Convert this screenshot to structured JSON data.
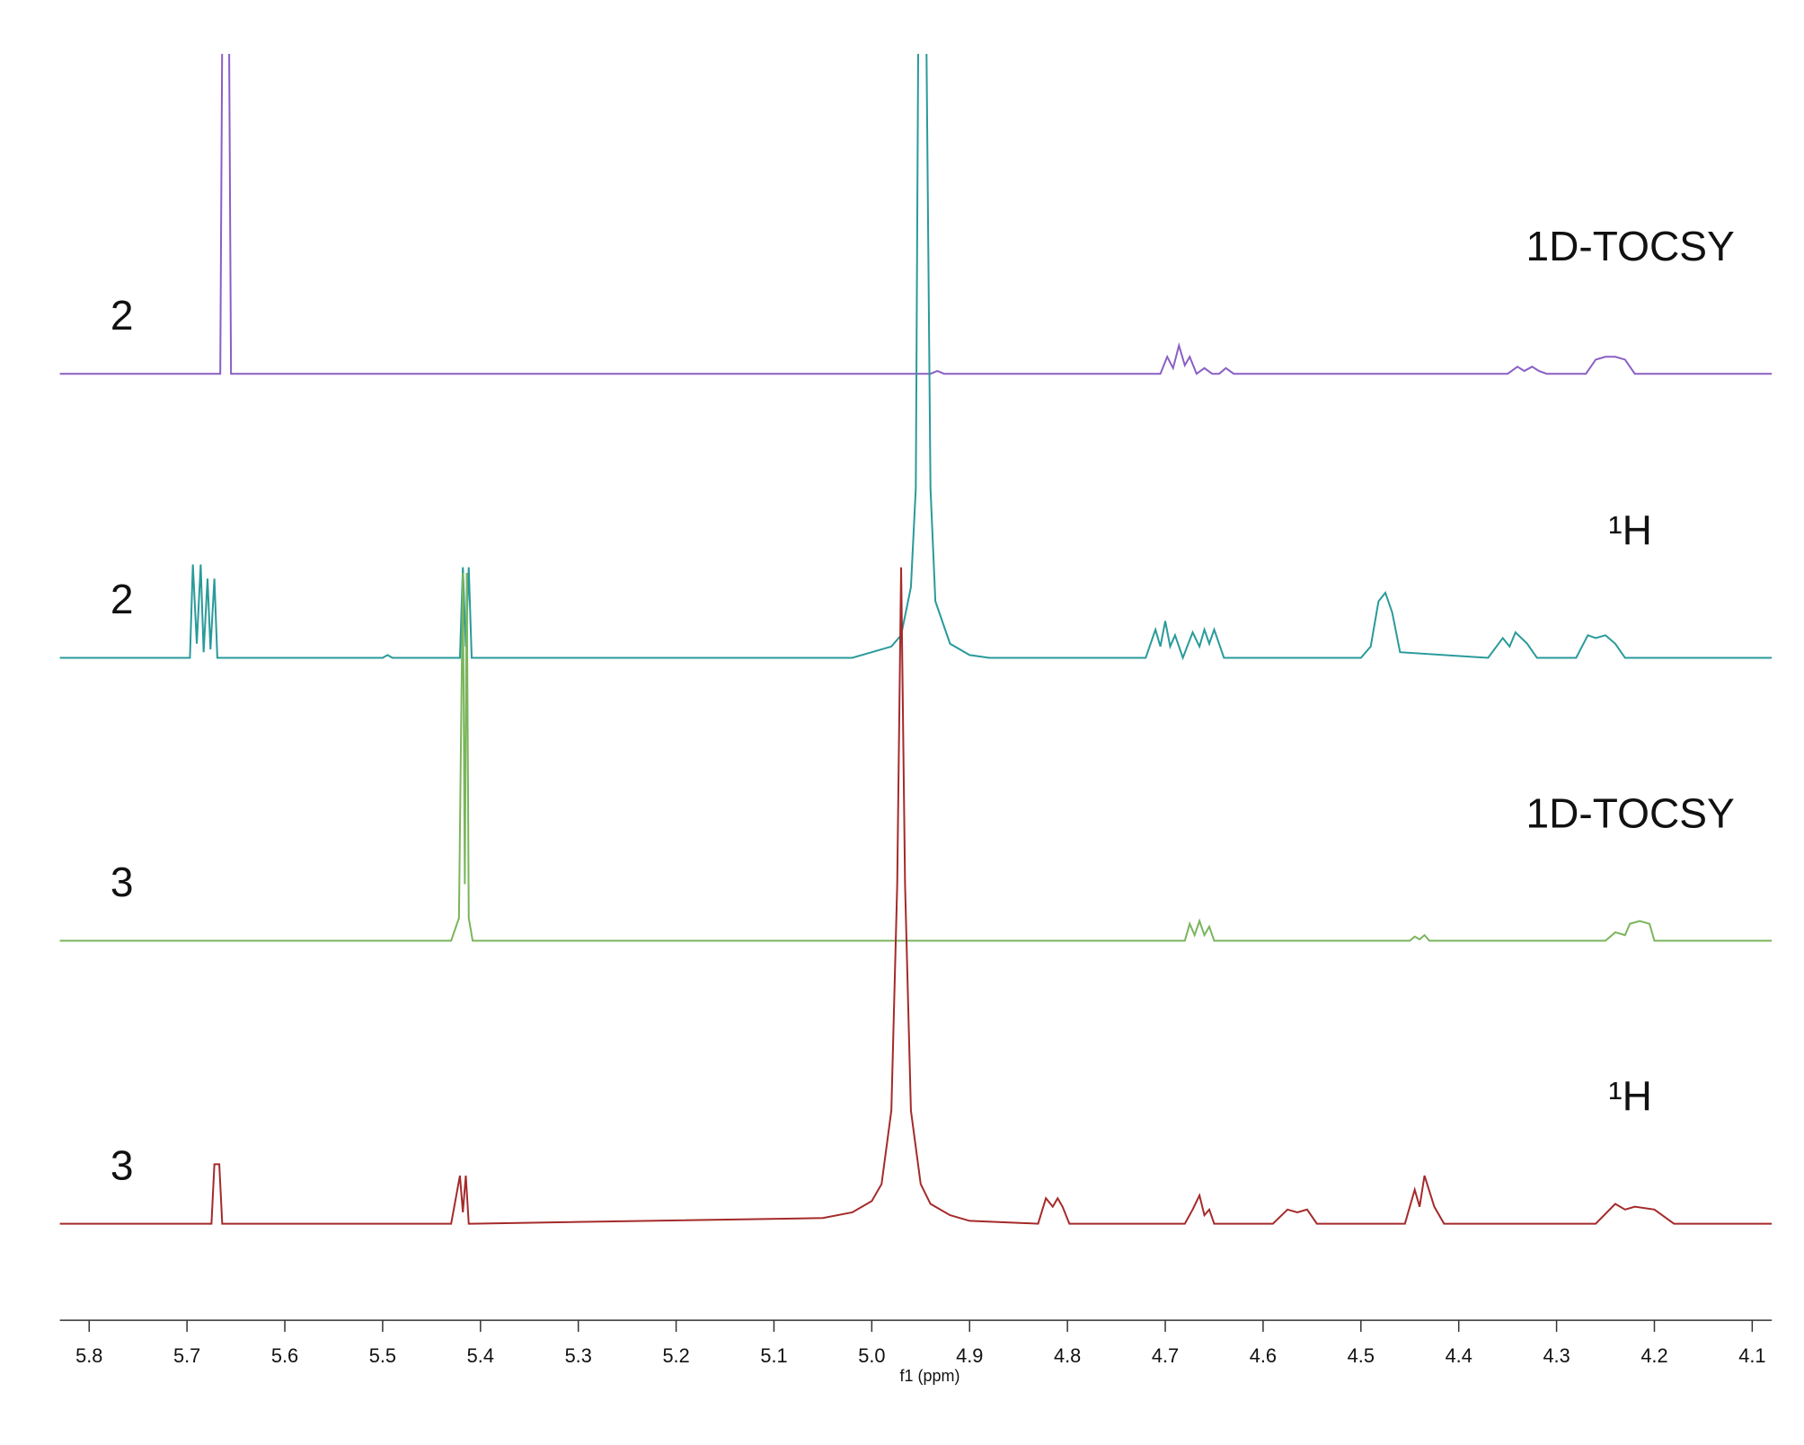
{
  "chart_data": {
    "type": "line",
    "x_label": "f1 (ppm)",
    "xlim": [
      5.83,
      4.08
    ],
    "xticks": [
      5.8,
      5.7,
      5.6,
      5.5,
      5.4,
      5.3,
      5.2,
      5.1,
      {
        "value": 5,
        "label": "5.0"
      },
      4.9,
      4.8,
      4.7,
      4.6,
      4.5,
      4.4,
      4.3,
      4.2,
      4.1
    ],
    "series": [
      {
        "name": "1D-TOCSY",
        "compound": "2",
        "color": "#8a5fc4",
        "x": [
          5.83,
          5.666,
          5.664,
          5.657,
          5.655,
          4.94,
          4.933,
          4.926,
          4.705,
          4.698,
          4.692,
          4.686,
          4.68,
          4.675,
          4.668,
          4.66,
          4.652,
          4.645,
          4.638,
          4.63,
          4.35,
          4.34,
          4.333,
          4.325,
          4.318,
          4.31,
          4.27,
          4.26,
          4.25,
          4.24,
          4.23,
          4.22,
          4.08
        ],
        "values": [
          0,
          0,
          120,
          120,
          0,
          0,
          1,
          0,
          0,
          6,
          2,
          10,
          3,
          6,
          0,
          2,
          0,
          0,
          2,
          0,
          0,
          2.5,
          1,
          2.5,
          1,
          0,
          0,
          5,
          6,
          6,
          5,
          0,
          0
        ]
      },
      {
        "name": "¹H",
        "compound": "2",
        "color": "#2a9a9a",
        "x": [
          5.83,
          5.697,
          5.694,
          5.69,
          5.686,
          5.683,
          5.679,
          5.676,
          5.672,
          5.669,
          5.5,
          5.495,
          5.49,
          5.421,
          5.418,
          5.415,
          5.412,
          5.409,
          5.02,
          5.0,
          4.98,
          4.97,
          4.96,
          4.955,
          4.952,
          4.945,
          4.94,
          4.935,
          4.92,
          4.9,
          4.88,
          4.72,
          4.71,
          4.705,
          4.7,
          4.695,
          4.69,
          4.682,
          4.672,
          4.665,
          4.66,
          4.655,
          4.65,
          4.64,
          4.5,
          4.49,
          4.482,
          4.475,
          4.468,
          4.46,
          4.37,
          4.355,
          4.348,
          4.342,
          4.33,
          4.32,
          4.28,
          4.268,
          4.26,
          4.25,
          4.24,
          4.23,
          4.08
        ],
        "values": [
          0,
          0,
          33,
          5,
          33,
          2,
          28,
          3,
          28,
          0,
          0,
          1,
          0,
          0,
          32,
          4,
          32,
          0,
          0,
          2,
          4,
          8,
          25,
          60,
          250,
          250,
          60,
          20,
          5,
          1,
          0,
          0,
          10,
          4,
          13,
          4,
          8,
          0,
          9,
          4,
          10,
          5,
          10,
          0,
          0,
          4,
          20,
          23,
          16,
          2,
          0,
          7,
          4,
          9,
          5,
          0,
          0,
          8,
          7,
          8,
          5,
          0,
          0
        ]
      },
      {
        "name": "1D-TOCSY",
        "compound": "3",
        "color": "#7ab55c",
        "x": [
          5.83,
          5.43,
          5.422,
          5.418,
          5.416,
          5.414,
          5.412,
          5.408,
          5.4,
          4.68,
          4.675,
          4.67,
          4.665,
          4.66,
          4.655,
          4.65,
          4.45,
          4.445,
          4.44,
          4.435,
          4.43,
          4.25,
          4.24,
          4.23,
          4.225,
          4.215,
          4.205,
          4.2,
          4.08
        ],
        "values": [
          0,
          0,
          8,
          130,
          20,
          130,
          8,
          0,
          0,
          0,
          6,
          2,
          7,
          2,
          5,
          0,
          0,
          1.5,
          0.5,
          2,
          0,
          0,
          3,
          2,
          6,
          7,
          6,
          0,
          0
        ]
      },
      {
        "name": "¹H",
        "compound": "3",
        "color": "#a52a2a",
        "x": [
          5.83,
          5.675,
          5.672,
          5.667,
          5.664,
          5.43,
          5.421,
          5.418,
          5.415,
          5.412,
          5.409,
          5.05,
          5.02,
          5.0,
          4.99,
          4.98,
          4.974,
          4.97,
          4.966,
          4.96,
          4.95,
          4.94,
          4.92,
          4.9,
          4.83,
          4.822,
          4.815,
          4.81,
          4.805,
          4.798,
          4.68,
          4.672,
          4.665,
          4.66,
          4.655,
          4.65,
          4.59,
          4.575,
          4.565,
          4.555,
          4.545,
          4.455,
          4.445,
          4.44,
          4.435,
          4.425,
          4.415,
          4.26,
          4.24,
          4.23,
          4.22,
          4.2,
          4.18,
          4.08
        ],
        "values": [
          0,
          0,
          21,
          21,
          0,
          0,
          17,
          4,
          17,
          0,
          0,
          2,
          4,
          8,
          14,
          40,
          120,
          232,
          120,
          40,
          14,
          7,
          3,
          1,
          0,
          9,
          6,
          9,
          6,
          0,
          0,
          5,
          10,
          3,
          5,
          0,
          0,
          5,
          4,
          5,
          0,
          0,
          12,
          6,
          17,
          6,
          0,
          0,
          7,
          5,
          6,
          5,
          0,
          0
        ]
      }
    ]
  }
}
